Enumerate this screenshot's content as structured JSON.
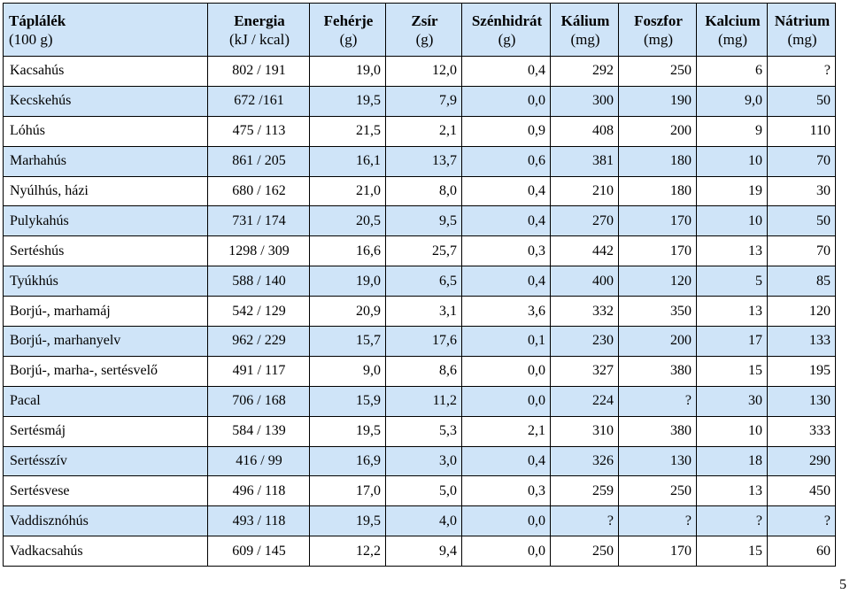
{
  "table": {
    "headers": [
      {
        "label": "Táplálék",
        "unit": "(100 g)"
      },
      {
        "label": "Energia",
        "unit": "(kJ / kcal)"
      },
      {
        "label": "Fehérje",
        "unit": "(g)"
      },
      {
        "label": "Zsír",
        "unit": "(g)"
      },
      {
        "label": "Szénhidrát",
        "unit": "(g)"
      },
      {
        "label": "Kálium",
        "unit": "(mg)"
      },
      {
        "label": "Foszfor",
        "unit": "(mg)"
      },
      {
        "label": "Kalcium",
        "unit": "(mg)"
      },
      {
        "label": "Nátrium",
        "unit": "(mg)"
      }
    ],
    "rows": [
      [
        "Kacsahús",
        "802 / 191",
        "19,0",
        "12,0",
        "0,4",
        "292",
        "250",
        "6",
        "?"
      ],
      [
        "Kecskehús",
        "672 /161",
        "19,5",
        "7,9",
        "0,0",
        "300",
        "190",
        "9,0",
        "50"
      ],
      [
        "Lóhús",
        "475 / 113",
        "21,5",
        "2,1",
        "0,9",
        "408",
        "200",
        "9",
        "110"
      ],
      [
        "Marhahús",
        "861 / 205",
        "16,1",
        "13,7",
        "0,6",
        "381",
        "180",
        "10",
        "70"
      ],
      [
        "Nyúlhús, házi",
        "680 / 162",
        "21,0",
        "8,0",
        "0,4",
        "210",
        "180",
        "19",
        "30"
      ],
      [
        "Pulykahús",
        "731 / 174",
        "20,5",
        "9,5",
        "0,4",
        "270",
        "170",
        "10",
        "50"
      ],
      [
        "Sertéshús",
        "1298 / 309",
        "16,6",
        "25,7",
        "0,3",
        "442",
        "170",
        "13",
        "70"
      ],
      [
        "Tyúkhús",
        "588 / 140",
        "19,0",
        "6,5",
        "0,4",
        "400",
        "120",
        "5",
        "85"
      ],
      [
        "Borjú-, marhamáj",
        "542 / 129",
        "20,9",
        "3,1",
        "3,6",
        "332",
        "350",
        "13",
        "120"
      ],
      [
        "Borjú-, marhanyelv",
        "962 / 229",
        "15,7",
        "17,6",
        "0,1",
        "230",
        "200",
        "17",
        "133"
      ],
      [
        "Borjú-, marha-, sertésvelő",
        "491 / 117",
        "9,0",
        "8,6",
        "0,0",
        "327",
        "380",
        "15",
        "195"
      ],
      [
        "Pacal",
        "706 / 168",
        "15,9",
        "11,2",
        "0,0",
        "224",
        "?",
        "30",
        "130"
      ],
      [
        "Sertésmáj",
        "584 / 139",
        "19,5",
        "5,3",
        "2,1",
        "310",
        "380",
        "10",
        "333"
      ],
      [
        "Sertésszív",
        "416 / 99",
        "16,9",
        "3,0",
        "0,4",
        "326",
        "130",
        "18",
        "290"
      ],
      [
        "Sertésvese",
        "496 / 118",
        "17,0",
        "5,0",
        "0,3",
        "259",
        "250",
        "13",
        "450"
      ],
      [
        "Vaddisznóhús",
        "493 / 118",
        "19,5",
        "4,0",
        "0,0",
        "?",
        "?",
        "?",
        "?"
      ],
      [
        "Vadkacsahús",
        "609 / 145",
        "12,2",
        "9,4",
        "0,0",
        "250",
        "170",
        "15",
        "60"
      ]
    ]
  },
  "page_number": "5"
}
